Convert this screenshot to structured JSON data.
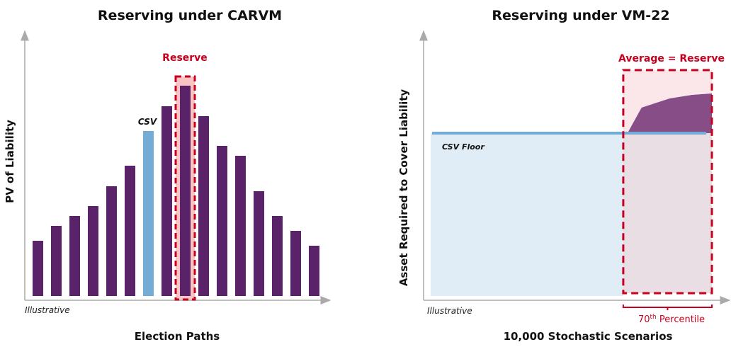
{
  "colors": {
    "bar": "#5a2269",
    "csv_bar": "#74acd5",
    "reserve": "#c8001e",
    "reserve_fill": "#f9c4c4",
    "floor_fill": "#e0edf6",
    "floor_line": "#74acd5",
    "tail_area": "#874d86",
    "box_fill": "#fbe7e9"
  },
  "chart_data": [
    {
      "type": "bar",
      "title": "Reserving under CARVM",
      "xlabel": "Election Paths",
      "ylabel": "PV of Liability",
      "note": "Illustrative",
      "values": [
        78,
        99,
        113,
        127,
        155,
        184,
        233,
        268,
        297,
        254,
        212,
        198,
        148,
        113,
        92,
        71
      ],
      "highlight": {
        "csv_index": 6,
        "csv_label": "CSV",
        "reserve_index": 8,
        "reserve_label": "Reserve"
      },
      "ylim": [
        0,
        330
      ],
      "grid": false
    },
    {
      "type": "area",
      "title": "Reserving under VM-22",
      "xlabel": "10,000 Stochastic Scenarios",
      "ylabel": "Asset Required to Cover Liability",
      "note": "Illustrative",
      "floor_label": "CSV Floor",
      "floor_value": 230,
      "tail_curve": {
        "x": [
          70,
          75,
          85,
          93,
          100
        ],
        "y": [
          230,
          266,
          279,
          284,
          286
        ]
      },
      "box_label": "Average = Reserve",
      "percentile_label": {
        "num": "70",
        "sup": "th",
        "text": " Percentile"
      },
      "percentile_start": 70,
      "xlim": [
        0,
        100
      ],
      "ylim": [
        0,
        330
      ],
      "grid": false
    }
  ]
}
